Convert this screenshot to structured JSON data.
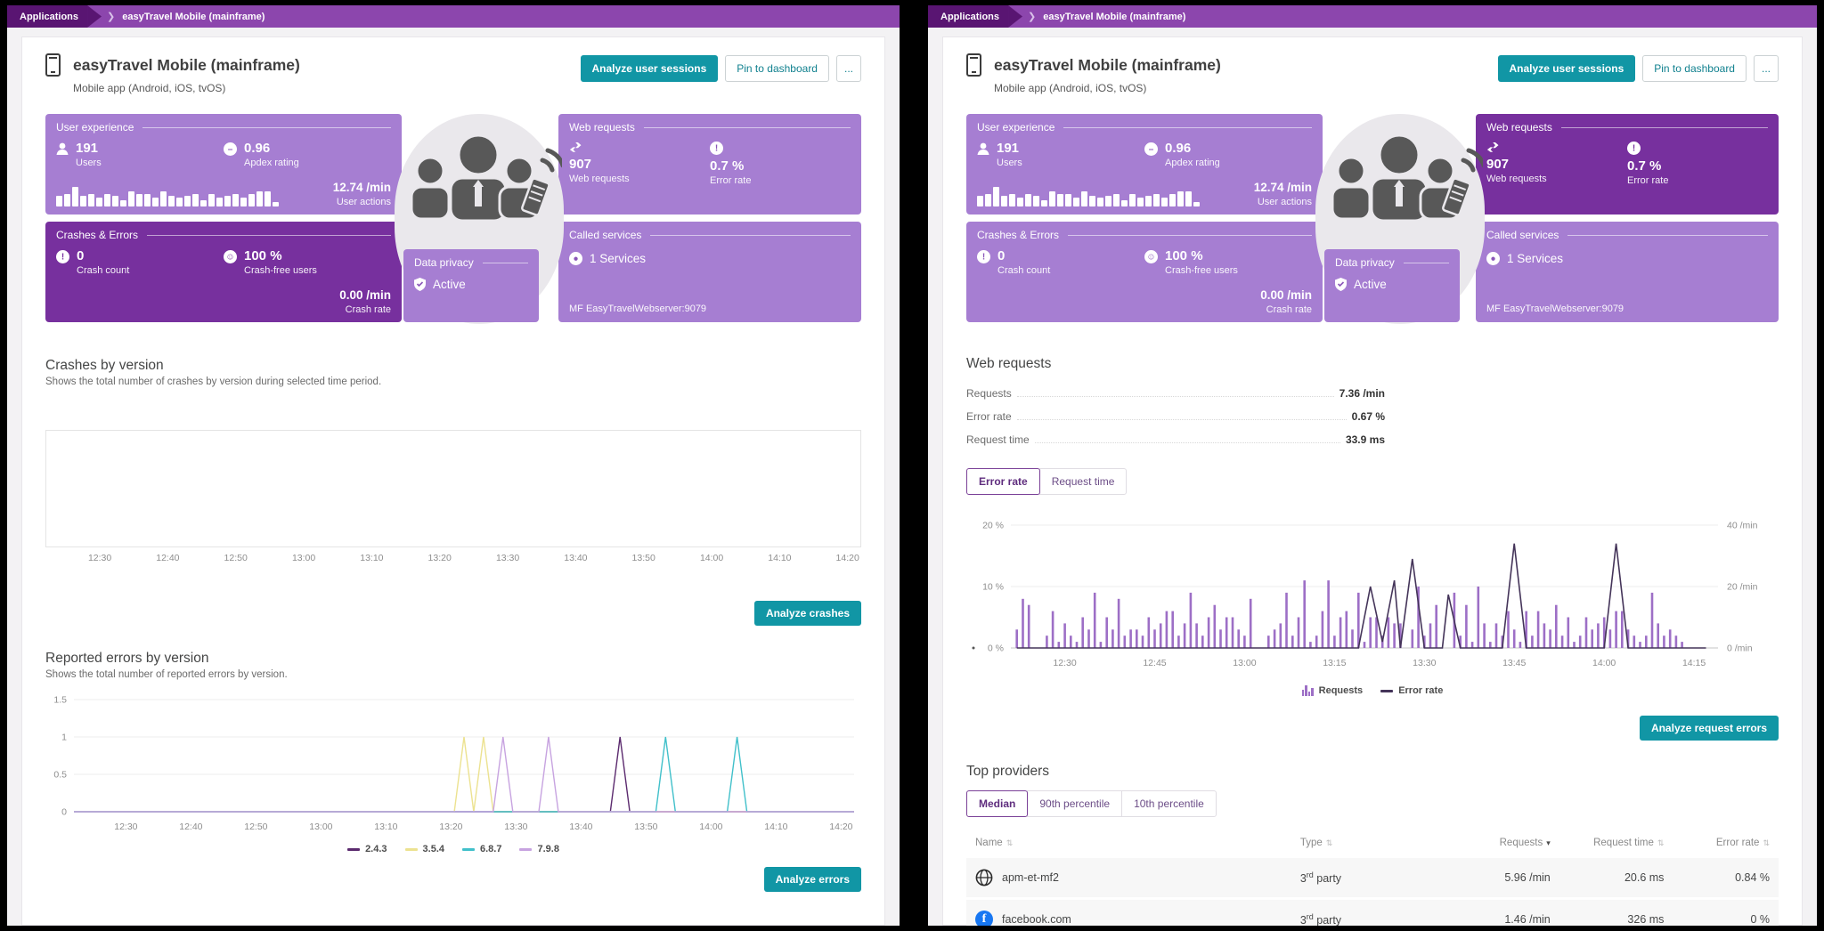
{
  "colors": {
    "teal": "#1196a5",
    "tile_mid": "#a67ed2",
    "tile_dark": "#77309e",
    "breadcrumb_bar": "#8c46ad",
    "breadcrumb_segment": "#591572",
    "bar_purple": "#9d6fc6",
    "error_line": "#443459",
    "facebook_blue": "#1877f2"
  },
  "breadcrumb": {
    "root": "Applications",
    "current": "easyTravel Mobile (mainframe)"
  },
  "header": {
    "title": "easyTravel Mobile (mainframe)",
    "subtitle": "Mobile app (Android, iOS, tvOS)",
    "analyze_sessions_label": "Analyze user sessions",
    "pin_label": "Pin to dashboard",
    "more_label": "..."
  },
  "tiles": {
    "user_experience": {
      "title": "User experience",
      "users_value": "191",
      "users_label": "Users",
      "apdex_value": "0.96",
      "apdex_label": "Apdex rating",
      "actions_value": "12.74 /min",
      "actions_label": "User actions",
      "sparkline": [
        5,
        6,
        9,
        5,
        6,
        4,
        6,
        5,
        3,
        7,
        6,
        6,
        4,
        7,
        5,
        4,
        5,
        6,
        3,
        6,
        4,
        5,
        6,
        4,
        6,
        7,
        7,
        2
      ]
    },
    "crashes_errors": {
      "title": "Crashes & Errors",
      "crash_count_value": "0",
      "crash_count_label": "Crash count",
      "crash_free_value": "100 %",
      "crash_free_label": "Crash-free users",
      "crash_rate_value": "0.00 /min",
      "crash_rate_label": "Crash rate"
    },
    "web_requests": {
      "title": "Web requests",
      "requests_value": "907",
      "requests_label": "Web requests",
      "error_value": "0.7 %",
      "error_label": "Error rate"
    },
    "called_services": {
      "title": "Called services",
      "services_value": "1 Services",
      "service_name": "MF EasyTravelWebserver:9079"
    },
    "data_privacy": {
      "title": "Data privacy",
      "status": "Active"
    }
  },
  "left_panel": {
    "crashes_section": {
      "title": "Crashes by version",
      "subtitle": "Shows the total number of crashes by version during selected time period.",
      "analyze_label": "Analyze crashes"
    },
    "errors_section": {
      "title": "Reported errors by version",
      "subtitle": "Shows the total number of reported errors by version.",
      "analyze_label": "Analyze errors"
    }
  },
  "right_panel": {
    "web_requests_section": {
      "title": "Web requests",
      "metrics": [
        {
          "label": "Requests",
          "value": "7.36 /min"
        },
        {
          "label": "Error rate",
          "value": "0.67 %"
        },
        {
          "label": "Request time",
          "value": "33.9 ms"
        }
      ],
      "toggle": [
        "Error rate",
        "Request time"
      ],
      "legend": [
        "Requests",
        "Error rate"
      ],
      "analyze_label": "Analyze request errors"
    },
    "top_providers": {
      "title": "Top providers",
      "toggle": [
        "Median",
        "90th percentile",
        "10th percentile"
      ],
      "table": {
        "headers": [
          "Name",
          "Type",
          "Requests",
          "Request time",
          "Error rate"
        ],
        "rows": [
          {
            "icon": "globe",
            "name": "apm-et-mf2",
            "type_base": "3",
            "type_sup": "rd",
            "type_tail": " party",
            "requests": "5.96 /min",
            "request_time": "20.6 ms",
            "error_rate": "0.84 %"
          },
          {
            "icon": "facebook",
            "name": "facebook.com",
            "type_base": "3",
            "type_sup": "rd",
            "type_tail": " party",
            "requests": "1.46 /min",
            "request_time": "326 ms",
            "error_rate": "0 %"
          }
        ]
      }
    }
  },
  "chart_data": [
    {
      "id": "crashes_by_version",
      "type": "line",
      "title": "Crashes by version",
      "x_range": [
        "12:22",
        "14:22"
      ],
      "x_ticks": [
        "12:30",
        "12:40",
        "12:50",
        "13:00",
        "13:10",
        "13:20",
        "13:30",
        "13:40",
        "13:50",
        "14:00",
        "14:10",
        "14:20"
      ],
      "series": [],
      "note": "no crashes during selected period"
    },
    {
      "id": "reported_errors_by_version",
      "type": "line",
      "title": "Reported errors by version",
      "ylim": [
        0,
        1.5
      ],
      "y_ticks": [
        0,
        0.5,
        1,
        1.5
      ],
      "x_range": [
        "12:22",
        "14:22"
      ],
      "x_ticks": [
        "12:30",
        "12:40",
        "12:50",
        "13:00",
        "13:10",
        "13:20",
        "13:30",
        "13:40",
        "13:50",
        "14:00",
        "14:10",
        "14:20"
      ],
      "spike_value": 1,
      "spike_halfwidth_min": 1.5,
      "series": [
        {
          "name": "2.4.3",
          "color": "#5b2a6e",
          "spike_times": [
            "13:46"
          ]
        },
        {
          "name": "3.5.4",
          "color": "#ece290",
          "spike_times": [
            "13:22",
            "13:25"
          ]
        },
        {
          "name": "6.8.7",
          "color": "#41c0ca",
          "spike_times": [
            "13:53",
            "14:04"
          ]
        },
        {
          "name": "7.9.8",
          "color": "#c7a3e0",
          "spike_times": [
            "13:28",
            "13:35"
          ]
        }
      ]
    },
    {
      "id": "web_requests_combo",
      "type": "bar+line",
      "x_range": [
        "12:21",
        "14:19"
      ],
      "x_ticks": [
        "12:30",
        "12:45",
        "13:00",
        "13:15",
        "13:30",
        "13:45",
        "14:00",
        "14:15"
      ],
      "left_axis": {
        "max": 20,
        "ticks": [
          [
            0,
            "0 %"
          ],
          [
            10,
            "10 %"
          ],
          [
            20,
            "20 %"
          ]
        ]
      },
      "right_axis": {
        "max": 40,
        "ticks": [
          [
            0,
            "0 /min"
          ],
          [
            20,
            "20 /min"
          ],
          [
            40,
            "40 /min"
          ]
        ]
      },
      "bar_series": {
        "name": "Requests",
        "unit": "/min",
        "color": "#9d6fc6",
        "start": "12:22",
        "step_min": 1,
        "values": [
          6,
          16,
          14,
          0,
          0,
          4,
          12,
          2,
          8,
          4,
          2,
          10,
          6,
          18,
          2,
          10,
          6,
          16,
          4,
          6,
          6,
          4,
          10,
          6,
          8,
          12,
          12,
          4,
          8,
          18,
          8,
          4,
          10,
          14,
          6,
          10,
          10,
          6,
          4,
          16,
          0,
          0,
          4,
          6,
          8,
          18,
          4,
          10,
          22,
          2,
          4,
          12,
          22,
          4,
          10,
          12,
          6,
          18,
          2,
          10,
          10,
          4,
          10,
          8,
          8,
          0,
          6,
          20,
          4,
          8,
          14,
          0,
          0,
          18,
          4,
          14,
          2,
          20,
          8,
          2,
          8,
          4,
          12,
          6,
          2,
          12,
          4,
          12,
          8,
          6,
          14,
          4,
          10,
          2,
          4,
          10,
          6,
          8,
          10,
          6,
          12,
          12,
          6,
          4,
          2,
          4,
          18,
          8,
          4,
          6,
          4,
          2
        ]
      },
      "line_series": {
        "name": "Error rate",
        "unit": "%",
        "color": "#443459",
        "points": [
          [
            "12:22",
            0
          ],
          [
            "13:19",
            0
          ],
          [
            "13:21",
            10
          ],
          [
            "13:23",
            1
          ],
          [
            "13:25",
            11
          ],
          [
            "13:26",
            0
          ],
          [
            "13:28",
            14.5
          ],
          [
            "13:30",
            0
          ],
          [
            "13:33",
            0
          ],
          [
            "13:34",
            8.7
          ],
          [
            "13:36",
            0
          ],
          [
            "13:43",
            0
          ],
          [
            "13:45",
            17
          ],
          [
            "13:47",
            0
          ],
          [
            "14:00",
            0
          ],
          [
            "14:02",
            17
          ],
          [
            "14:04",
            0
          ],
          [
            "14:17",
            0
          ]
        ]
      }
    }
  ]
}
